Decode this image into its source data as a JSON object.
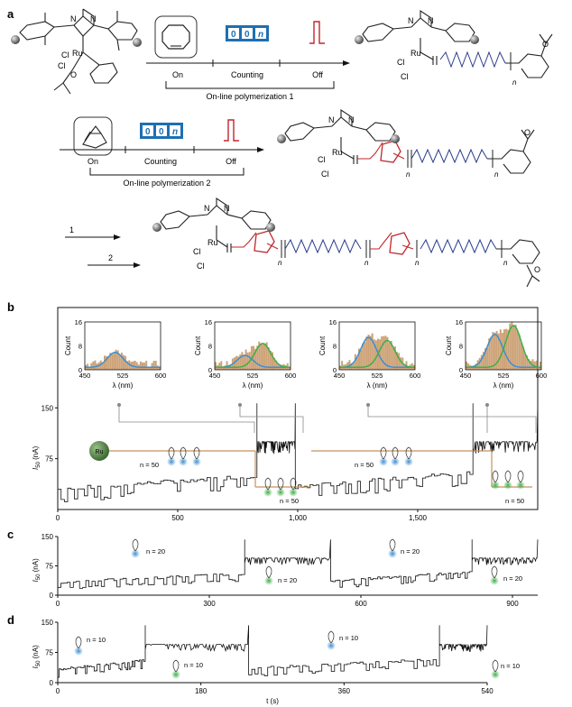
{
  "panel_labels": {
    "a": "a",
    "b": "b",
    "c": "c",
    "d": "d"
  },
  "scheme": {
    "row1": {
      "steps": [
        {
          "label": "On"
        },
        {
          "label": "Counting"
        },
        {
          "label": "Off"
        }
      ],
      "counter_text": "00n",
      "bracket_label": "On-line polymerization 1",
      "catalyst_atoms": {
        "ru": "Ru",
        "cl1": "Cl",
        "cl2": "Cl",
        "n1": "N",
        "n2": "N",
        "o": "O"
      },
      "product_atoms": {
        "ru": "Ru",
        "cl1": "Cl",
        "cl2": "Cl",
        "n1": "N",
        "n2": "N",
        "o": "O",
        "repeat": "n"
      }
    },
    "row2": {
      "steps": [
        {
          "label": "On"
        },
        {
          "label": "Counting"
        },
        {
          "label": "Off"
        }
      ],
      "counter_text": "00n",
      "bracket_label": "On-line polymerization 2",
      "product_atoms": {
        "ru": "Ru",
        "cl1": "Cl",
        "cl2": "Cl",
        "n1": "N",
        "n2": "N",
        "o": "O",
        "repeat1": "n",
        "repeat2": "n"
      }
    },
    "row3": {
      "arrows": [
        {
          "label": "1"
        },
        {
          "label": "2"
        }
      ],
      "product_atoms": {
        "ru": "Ru",
        "cl1": "Cl",
        "cl2": "Cl",
        "n1": "N",
        "n2": "N",
        "o": "O",
        "repeat1": "n",
        "repeat2": "n",
        "repeat3": "n",
        "repeat4": "n"
      }
    }
  },
  "colors": {
    "blue": "#3b8fd6",
    "green": "#3fae49",
    "red": "#c0272d",
    "brown": "#c4925e",
    "navy": "#2a3c8c",
    "counter_bg": "#1f6fb2"
  },
  "chart_data": [
    {
      "type": "line",
      "panel": "b",
      "ylabel": "I",
      "ylabel_sub": "50",
      "ylabel_unit": " (nA)",
      "xlim": [
        0,
        2000
      ],
      "ylim": [
        0,
        165
      ],
      "xticks": [
        0,
        500,
        1000,
        1500
      ],
      "xtick_labels": [
        "0",
        "500",
        "1,000",
        "1,500"
      ],
      "yticks": [
        75,
        150
      ],
      "ytick_labels": [
        "75",
        "150"
      ],
      "annotations": [
        {
          "text": "Ru"
        },
        {
          "text": "n = 50"
        },
        {
          "text": "n = 50"
        },
        {
          "text": "n = 50"
        },
        {
          "text": "n = 50"
        }
      ],
      "segments": [
        {
          "x": [
            0,
            830
          ],
          "type": "steps",
          "base": 50
        },
        {
          "x": [
            830,
            990
          ],
          "type": "bursts",
          "base": 100
        },
        {
          "x": [
            990,
            1730
          ],
          "type": "steps",
          "base": 55
        },
        {
          "x": [
            1730,
            2000
          ],
          "type": "bursts",
          "base": 100
        }
      ]
    },
    {
      "type": "bar",
      "panel": "b-inset-1",
      "xlabel": "λ (nm)",
      "ylabel": "Count",
      "xlim": [
        450,
        600
      ],
      "ylim": [
        0,
        16
      ],
      "xticks": [
        450,
        525,
        600
      ],
      "yticks": [
        0,
        8,
        16
      ],
      "series": [
        {
          "name": "",
          "peak_x": 510,
          "peak_y": 5
        }
      ]
    },
    {
      "type": "bar",
      "panel": "b-inset-2",
      "xlabel": "λ (nm)",
      "ylabel": "Count",
      "xlim": [
        450,
        600
      ],
      "ylim": [
        0,
        16
      ],
      "xticks": [
        450,
        525,
        600
      ],
      "yticks": [
        0,
        8,
        16
      ],
      "series": [
        {
          "name": "",
          "peak_x": 510,
          "peak_y": 4
        },
        {
          "name": "",
          "peak_x": 545,
          "peak_y": 8
        }
      ]
    },
    {
      "type": "bar",
      "panel": "b-inset-3",
      "xlabel": "λ (nm)",
      "ylabel": "Count",
      "xlim": [
        450,
        600
      ],
      "ylim": [
        0,
        16
      ],
      "xticks": [
        450,
        525,
        600
      ],
      "yticks": [
        0,
        8,
        16
      ],
      "series": [
        {
          "name": "",
          "peak_x": 508,
          "peak_y": 10
        },
        {
          "name": "",
          "peak_x": 545,
          "peak_y": 9
        }
      ]
    },
    {
      "type": "bar",
      "panel": "b-inset-4",
      "xlabel": "λ (nm)",
      "ylabel": "Count",
      "xlim": [
        450,
        600
      ],
      "ylim": [
        0,
        16
      ],
      "xticks": [
        450,
        525,
        600
      ],
      "yticks": [
        0,
        8,
        16
      ],
      "series": [
        {
          "name": "",
          "peak_x": 508,
          "peak_y": 11
        },
        {
          "name": "",
          "peak_x": 545,
          "peak_y": 14
        }
      ]
    },
    {
      "type": "line",
      "panel": "c",
      "ylabel": "I",
      "ylabel_sub": "50",
      "ylabel_unit": " (nA)",
      "xlim": [
        0,
        950
      ],
      "ylim": [
        0,
        150
      ],
      "xticks": [
        0,
        300,
        600,
        900
      ],
      "xtick_labels": [
        "0",
        "300",
        "600",
        "900"
      ],
      "yticks": [
        0,
        75,
        150
      ],
      "ytick_labels": [
        "0",
        "75",
        "150"
      ],
      "annotations": [
        {
          "text": "n = 20"
        },
        {
          "text": "n = 20"
        },
        {
          "text": "n = 20"
        },
        {
          "text": "n = 20"
        }
      ],
      "segments": [
        {
          "x": [
            0,
            370
          ],
          "type": "steps",
          "base": 55
        },
        {
          "x": [
            370,
            540
          ],
          "type": "bursts",
          "base": 95
        },
        {
          "x": [
            540,
            820
          ],
          "type": "steps",
          "base": 60
        },
        {
          "x": [
            820,
            950
          ],
          "type": "bursts",
          "base": 95
        }
      ]
    },
    {
      "type": "line",
      "panel": "d",
      "ylabel": "I",
      "ylabel_sub": "50",
      "ylabel_unit": " (nA)",
      "xlabel": "t (s)",
      "xlim": [
        0,
        540
      ],
      "ylim": [
        0,
        150
      ],
      "xticks": [
        0,
        180,
        360,
        540
      ],
      "xtick_labels": [
        "0",
        "180",
        "360",
        "540"
      ],
      "yticks": [
        0,
        75,
        150
      ],
      "ytick_labels": [
        "0",
        "75",
        "150"
      ],
      "annotations": [
        {
          "text": "n = 10"
        },
        {
          "text": "n = 10"
        },
        {
          "text": "n = 10"
        },
        {
          "text": "n = 10"
        }
      ],
      "segments": [
        {
          "x": [
            0,
            110
          ],
          "type": "steps",
          "base": 55
        },
        {
          "x": [
            110,
            240
          ],
          "type": "bursts",
          "base": 95
        },
        {
          "x": [
            240,
            480
          ],
          "type": "steps",
          "base": 58
        },
        {
          "x": [
            480,
            540
          ],
          "type": "bursts",
          "base": 95
        }
      ]
    }
  ]
}
